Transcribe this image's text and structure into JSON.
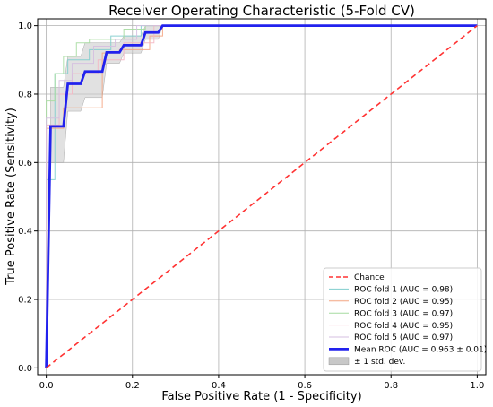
{
  "chart_data": {
    "type": "line",
    "title": "Receiver Operating Characteristic (5-Fold CV)",
    "xlabel": "False Positive Rate (1 - Specificity)",
    "ylabel": "True Positive Rate (Sensitivity)",
    "xlim": [
      -0.02,
      1.02
    ],
    "ylim": [
      -0.02,
      1.02
    ],
    "xticks": [
      "0.0",
      "0.2",
      "0.4",
      "0.6",
      "0.8",
      "1.0"
    ],
    "yticks": [
      "0.0",
      "0.2",
      "0.4",
      "0.6",
      "0.8",
      "1.0"
    ],
    "grid": true,
    "legend_position": "bottom-right",
    "series": [
      {
        "name": "Chance",
        "color": "#ff3333",
        "style": "dashed",
        "x": [
          0,
          1
        ],
        "y": [
          0,
          1
        ]
      },
      {
        "name": "ROC fold 1 (AUC = 0.98)",
        "color": "#7fcdcd",
        "style": "solid",
        "x": [
          0,
          0,
          0.02,
          0.02,
          0.05,
          0.05,
          0.1,
          0.1,
          0.15,
          0.15,
          0.22,
          0.22,
          1.0
        ],
        "y": [
          0,
          0.55,
          0.55,
          0.86,
          0.86,
          0.9,
          0.9,
          0.93,
          0.93,
          0.97,
          0.97,
          1.0,
          1.0
        ]
      },
      {
        "name": "ROC fold 2 (AUC = 0.95)",
        "color": "#f4a582",
        "style": "solid",
        "x": [
          0,
          0,
          0.04,
          0.04,
          0.08,
          0.08,
          0.13,
          0.13,
          0.17,
          0.17,
          0.24,
          0.24,
          0.27,
          0.27,
          1.0
        ],
        "y": [
          0,
          0.7,
          0.7,
          0.76,
          0.76,
          0.76,
          0.76,
          0.92,
          0.92,
          0.93,
          0.93,
          0.97,
          0.97,
          1.0,
          1.0
        ]
      },
      {
        "name": "ROC fold 3 (AUC = 0.97)",
        "color": "#a6dba0",
        "style": "solid",
        "x": [
          0,
          0,
          0.02,
          0.02,
          0.04,
          0.04,
          0.07,
          0.07,
          0.1,
          0.1,
          0.18,
          0.18,
          0.23,
          0.23,
          1.0
        ],
        "y": [
          0,
          0.78,
          0.78,
          0.86,
          0.86,
          0.91,
          0.91,
          0.95,
          0.95,
          0.96,
          0.96,
          0.99,
          0.99,
          1.0,
          1.0
        ]
      },
      {
        "name": "ROC fold 4 (AUC = 0.95)",
        "color": "#f4b6c2",
        "style": "solid",
        "x": [
          0,
          0,
          0.03,
          0.03,
          0.06,
          0.06,
          0.12,
          0.12,
          0.18,
          0.18,
          0.25,
          0.25,
          1.0
        ],
        "y": [
          0,
          0.71,
          0.71,
          0.8,
          0.8,
          0.86,
          0.86,
          0.9,
          0.9,
          0.95,
          0.95,
          1.0,
          1.0
        ]
      },
      {
        "name": "ROC fold 5 (AUC = 0.97)",
        "color": "#d5bfe0",
        "style": "solid",
        "x": [
          0,
          0,
          0.03,
          0.03,
          0.06,
          0.06,
          0.11,
          0.11,
          0.16,
          0.16,
          0.21,
          0.21,
          1.0
        ],
        "y": [
          0,
          0.73,
          0.73,
          0.84,
          0.84,
          0.89,
          0.89,
          0.94,
          0.94,
          0.96,
          0.96,
          1.0,
          1.0
        ]
      },
      {
        "name": "Mean ROC (AUC = 0.963 ± 0.01)",
        "color": "#2222ee",
        "style": "solid",
        "x": [
          0,
          0.01,
          0.04,
          0.05,
          0.08,
          0.09,
          0.13,
          0.14,
          0.17,
          0.18,
          0.22,
          0.23,
          0.26,
          0.27,
          1.0
        ],
        "y": [
          0,
          0.706,
          0.706,
          0.83,
          0.83,
          0.866,
          0.866,
          0.922,
          0.922,
          0.943,
          0.943,
          0.98,
          0.98,
          1.0,
          1.0
        ]
      }
    ],
    "std_band": {
      "name": "± 1 std. dev.",
      "color": "#c8c8c8",
      "x": [
        0.01,
        0.04,
        0.05,
        0.08,
        0.09,
        0.13,
        0.14,
        0.17,
        0.18,
        0.22,
        0.23,
        0.26,
        0.27
      ],
      "upper": [
        0.82,
        0.82,
        0.91,
        0.91,
        0.95,
        0.95,
        0.95,
        0.95,
        0.97,
        0.97,
        1.0,
        1.0,
        1.0
      ],
      "lower": [
        0.6,
        0.6,
        0.75,
        0.75,
        0.79,
        0.79,
        0.89,
        0.89,
        0.92,
        0.92,
        0.96,
        0.96,
        1.0
      ]
    }
  }
}
